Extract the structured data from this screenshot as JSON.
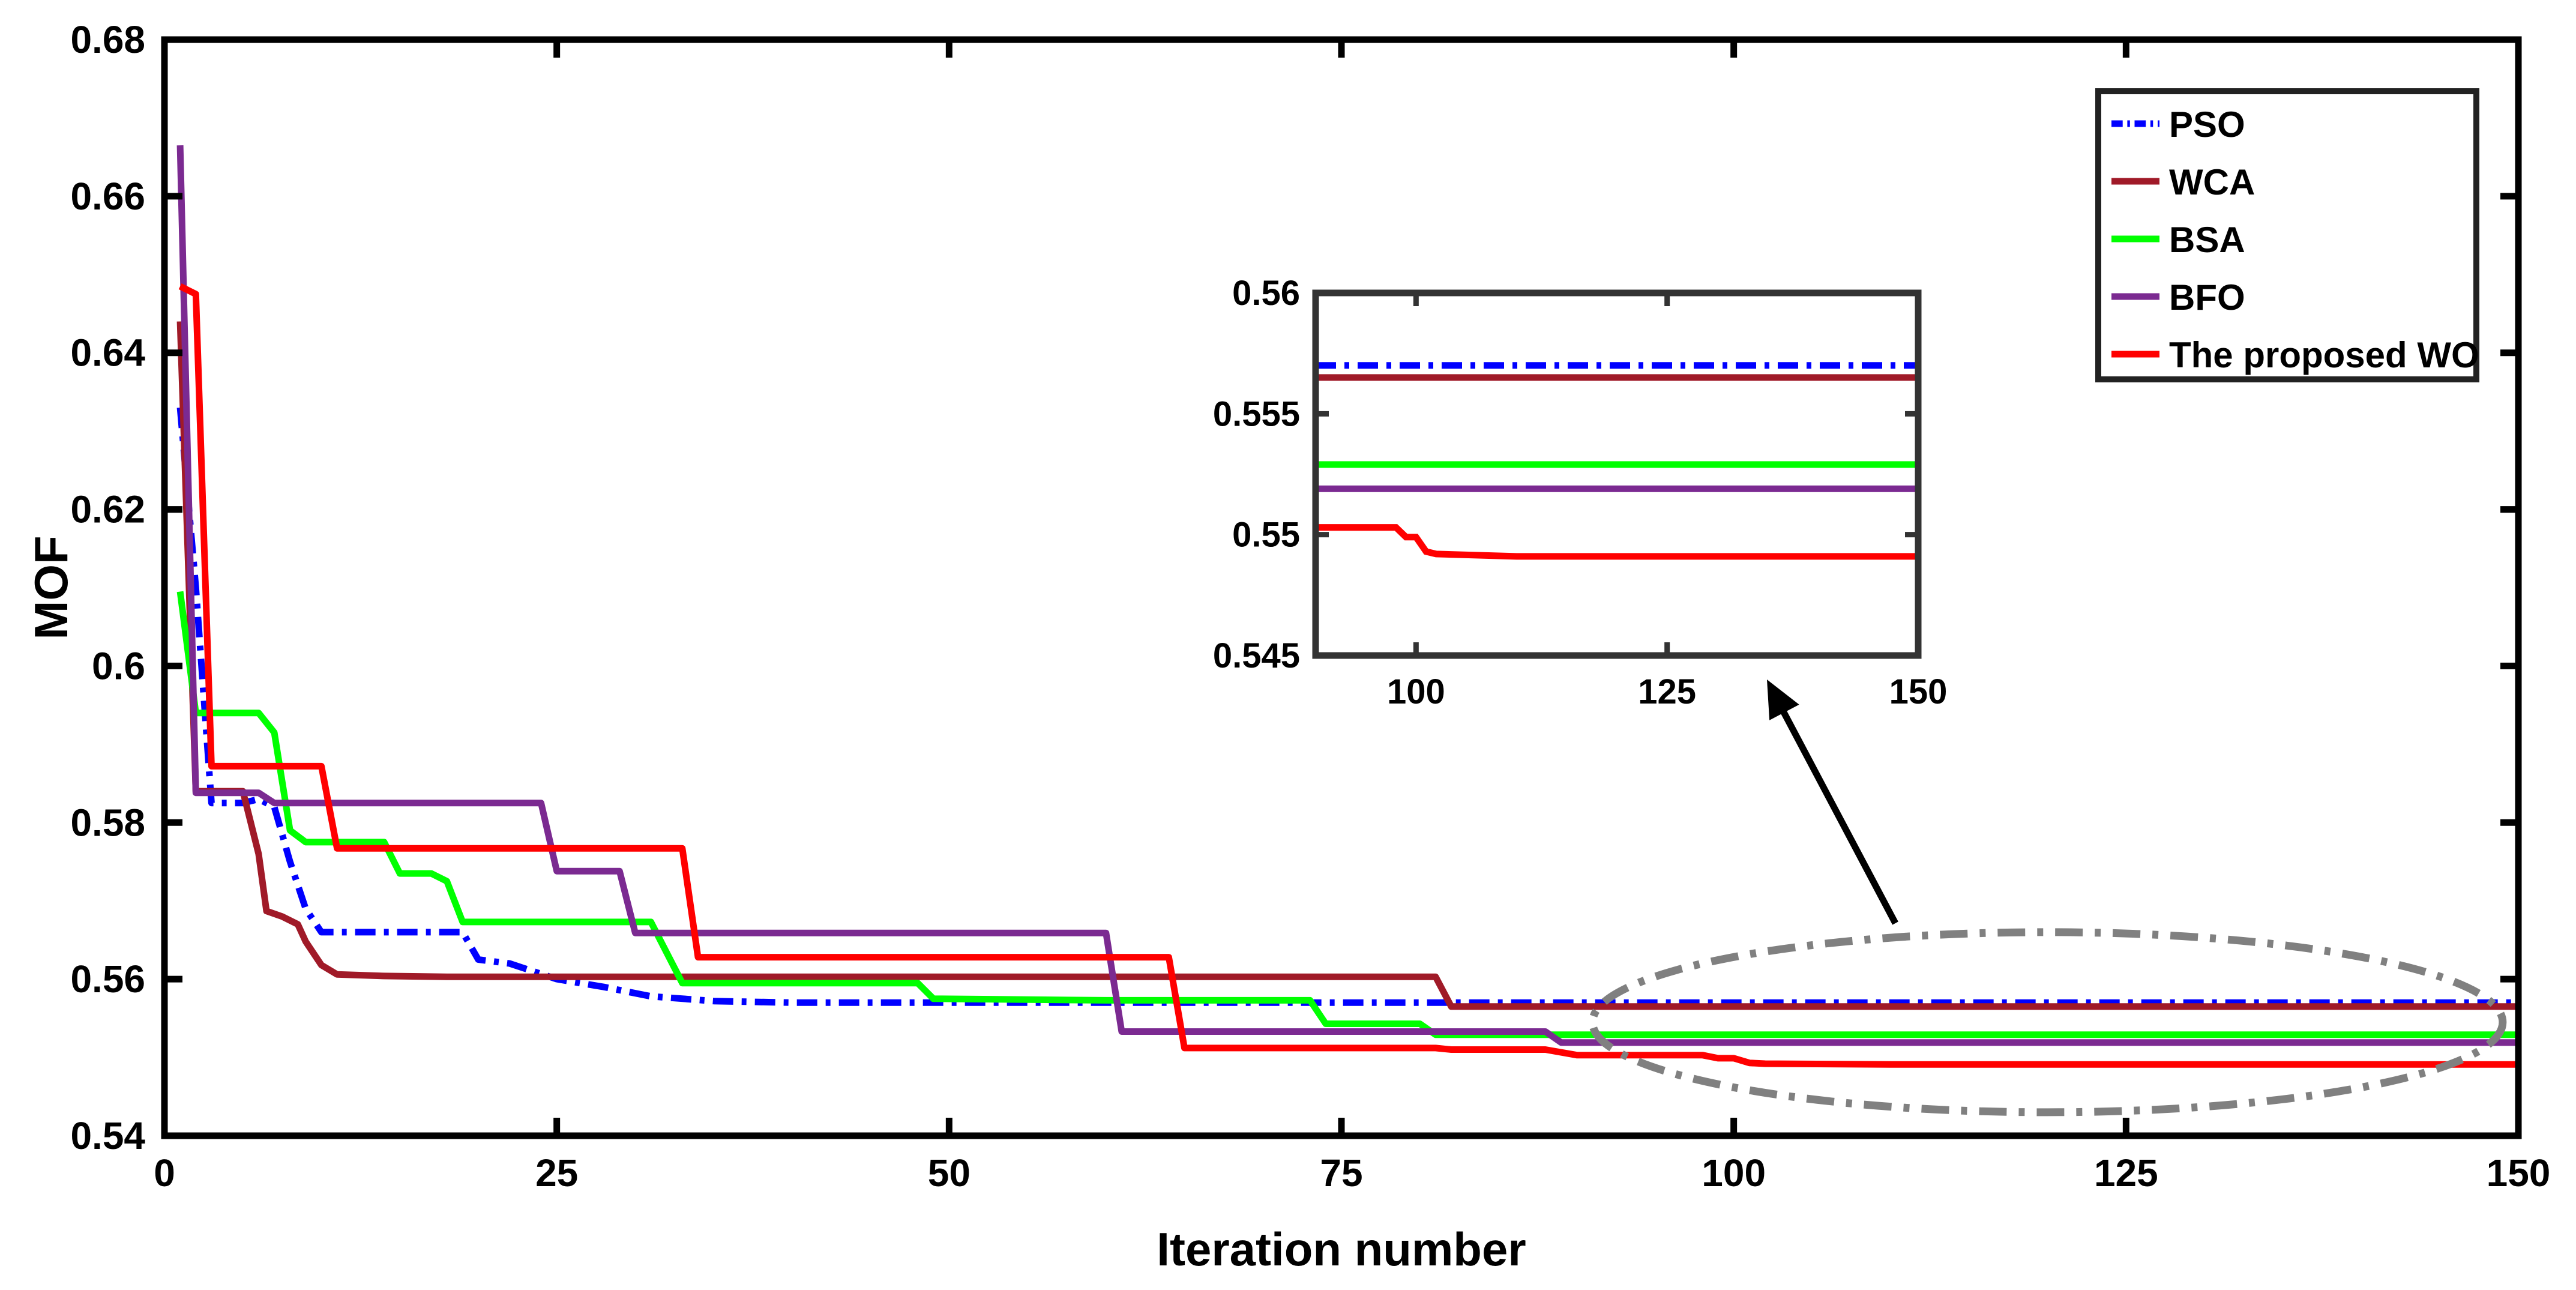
{
  "chart_data": {
    "type": "line",
    "title": "",
    "xlabel": "Iteration number",
    "ylabel": "MOF",
    "xlim": [
      0,
      150
    ],
    "ylim": [
      0.54,
      0.68
    ],
    "xticks": [
      0,
      25,
      50,
      75,
      100,
      125,
      150
    ],
    "xtick_labels": [
      "0",
      "25",
      "50",
      "75",
      "100",
      "125",
      "150"
    ],
    "yticks": [
      0.54,
      0.56,
      0.58,
      0.6,
      0.62,
      0.64,
      0.66,
      0.68
    ],
    "ytick_labels": [
      "0.54",
      "0.56",
      "0.58",
      "0.6",
      "0.62",
      "0.64",
      "0.66",
      "0.68"
    ],
    "grid": false,
    "legend_position": "top-right",
    "series": [
      {
        "name": "PSO",
        "color": "#0000ff",
        "dash": "dashdot",
        "points": [
          [
            1,
            0.633
          ],
          [
            2,
            0.61
          ],
          [
            3,
            0.5825
          ],
          [
            5,
            0.5825
          ],
          [
            6,
            0.583
          ],
          [
            7,
            0.582
          ],
          [
            8,
            0.575
          ],
          [
            9,
            0.569
          ],
          [
            10,
            0.566
          ],
          [
            14,
            0.566
          ],
          [
            19,
            0.566
          ],
          [
            20,
            0.5625
          ],
          [
            22,
            0.562
          ],
          [
            25,
            0.56
          ],
          [
            28,
            0.559
          ],
          [
            31,
            0.5578
          ],
          [
            35,
            0.5572
          ],
          [
            40,
            0.557
          ],
          [
            50,
            0.557
          ],
          [
            82,
            0.557
          ],
          [
            150,
            0.557
          ]
        ]
      },
      {
        "name": "WCA",
        "color": "#a01a28",
        "dash": "solid",
        "points": [
          [
            1,
            0.644
          ],
          [
            2,
            0.584
          ],
          [
            5,
            0.584
          ],
          [
            6,
            0.576
          ],
          [
            6.5,
            0.5687
          ],
          [
            7.5,
            0.568
          ],
          [
            8.5,
            0.567
          ],
          [
            9,
            0.5648
          ],
          [
            10,
            0.5618
          ],
          [
            11,
            0.5606
          ],
          [
            14,
            0.5604
          ],
          [
            18,
            0.5603
          ],
          [
            30,
            0.5603
          ],
          [
            40,
            0.5603
          ],
          [
            81,
            0.5603
          ],
          [
            82,
            0.5565
          ],
          [
            150,
            0.5565
          ]
        ]
      },
      {
        "name": "BSA",
        "color": "#00ff00",
        "dash": "solid",
        "points": [
          [
            1,
            0.6095
          ],
          [
            2,
            0.594
          ],
          [
            6,
            0.594
          ],
          [
            7,
            0.5915
          ],
          [
            8,
            0.579
          ],
          [
            9,
            0.5775
          ],
          [
            11,
            0.5775
          ],
          [
            14,
            0.5775
          ],
          [
            15,
            0.5735
          ],
          [
            17,
            0.5735
          ],
          [
            18,
            0.5725
          ],
          [
            19,
            0.5673
          ],
          [
            31,
            0.5673
          ],
          [
            33,
            0.5595
          ],
          [
            48,
            0.5595
          ],
          [
            49,
            0.5575
          ],
          [
            60,
            0.5573
          ],
          [
            73,
            0.5573
          ],
          [
            74,
            0.5543
          ],
          [
            80,
            0.5543
          ],
          [
            81,
            0.5529
          ],
          [
            150,
            0.5529
          ]
        ]
      },
      {
        "name": "BFO",
        "color": "#7b2a91",
        "dash": "solid",
        "points": [
          [
            1,
            0.6665
          ],
          [
            2,
            0.5838
          ],
          [
            6,
            0.5838
          ],
          [
            7,
            0.5825
          ],
          [
            24,
            0.5825
          ],
          [
            25,
            0.5738
          ],
          [
            29,
            0.5738
          ],
          [
            30,
            0.5659
          ],
          [
            60,
            0.5659
          ],
          [
            61,
            0.5533
          ],
          [
            88,
            0.5533
          ],
          [
            89,
            0.5519
          ],
          [
            150,
            0.5519
          ]
        ]
      },
      {
        "name": "The proposed WO",
        "color": "#ff0000",
        "dash": "solid",
        "points": [
          [
            1,
            0.6485
          ],
          [
            2,
            0.6475
          ],
          [
            3,
            0.5872
          ],
          [
            10,
            0.5872
          ],
          [
            11,
            0.5767
          ],
          [
            33,
            0.5767
          ],
          [
            34,
            0.5628
          ],
          [
            64,
            0.5628
          ],
          [
            65,
            0.5512
          ],
          [
            81,
            0.5512
          ],
          [
            82,
            0.551
          ],
          [
            88,
            0.551
          ],
          [
            90,
            0.5503
          ],
          [
            98,
            0.5503
          ],
          [
            99,
            0.5499
          ],
          [
            100,
            0.5499
          ],
          [
            101,
            0.5493
          ],
          [
            102,
            0.5492
          ],
          [
            110,
            0.5491
          ],
          [
            150,
            0.5491
          ]
        ]
      }
    ],
    "inset": {
      "xlim": [
        90,
        150
      ],
      "ylim": [
        0.545,
        0.56
      ],
      "xticks": [
        100,
        125,
        150
      ],
      "xtick_labels": [
        "100",
        "125",
        "150"
      ],
      "yticks": [
        0.545,
        0.55,
        0.555,
        0.56
      ],
      "ytick_labels": [
        "0.545",
        "0.55",
        "0.555",
        "0.56"
      ],
      "series_points": {
        "PSO": [
          [
            90,
            0.557
          ],
          [
            150,
            0.557
          ]
        ],
        "WCA": [
          [
            90,
            0.5565
          ],
          [
            150,
            0.5565
          ]
        ],
        "BSA": [
          [
            90,
            0.5529
          ],
          [
            150,
            0.5529
          ]
        ],
        "BFO": [
          [
            90,
            0.5519
          ],
          [
            150,
            0.5519
          ]
        ],
        "The proposed WO": [
          [
            90,
            0.5503
          ],
          [
            98,
            0.5503
          ],
          [
            99,
            0.5499
          ],
          [
            100,
            0.5499
          ],
          [
            101,
            0.5493
          ],
          [
            102,
            0.5492
          ],
          [
            110,
            0.5491
          ],
          [
            150,
            0.5491
          ]
        ]
      }
    },
    "annotation": {
      "ellipse_color": "#808080",
      "ellipse_center": [
        120,
        0.5545
      ],
      "ellipse_radius_x": 29,
      "ellipse_radius_y": 0.0115,
      "arrow_color": "#000000"
    }
  }
}
